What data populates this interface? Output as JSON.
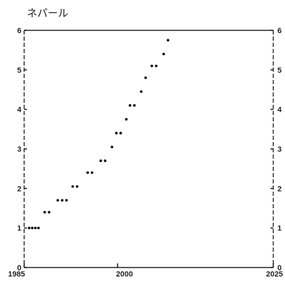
{
  "chart_data": {
    "type": "scatter",
    "title": "ネパール",
    "xlabel": "",
    "ylabel": "",
    "xlim": [
      1985,
      2025
    ],
    "ylim": [
      0,
      6
    ],
    "x_ticks": [
      1985,
      2000,
      2025
    ],
    "x_tick_labels": [
      "1985",
      "2000",
      "2025"
    ],
    "y_ticks": [
      0,
      1,
      2,
      3,
      4,
      5,
      6
    ],
    "y_tick_labels": [
      "0",
      "1",
      "2",
      "3",
      "4",
      "5",
      "6"
    ],
    "right_y_axis": true,
    "grid": false,
    "legend": "none",
    "series": [
      {
        "marker_color": "#111111",
        "points": [
          [
            1985.8,
            1.0
          ],
          [
            1986.3,
            1.0
          ],
          [
            1986.8,
            1.0
          ],
          [
            1987.3,
            1.0
          ],
          [
            1988.3,
            1.4
          ],
          [
            1989.0,
            1.4
          ],
          [
            1990.4,
            1.7
          ],
          [
            1991.1,
            1.7
          ],
          [
            1991.8,
            1.7
          ],
          [
            1992.8,
            2.05
          ],
          [
            1993.5,
            2.05
          ],
          [
            1995.2,
            2.4
          ],
          [
            1995.9,
            2.4
          ],
          [
            1997.3,
            2.7
          ],
          [
            1998.0,
            2.7
          ],
          [
            1999.1,
            3.05
          ],
          [
            1999.8,
            3.4
          ],
          [
            2000.5,
            3.4
          ],
          [
            2001.4,
            3.75
          ],
          [
            2002.0,
            4.1
          ],
          [
            2002.7,
            4.1
          ],
          [
            2003.8,
            4.45
          ],
          [
            2004.5,
            4.8
          ],
          [
            2005.5,
            5.1
          ],
          [
            2006.2,
            5.1
          ],
          [
            2007.4,
            5.4
          ],
          [
            2008.1,
            5.75
          ]
        ]
      }
    ]
  }
}
